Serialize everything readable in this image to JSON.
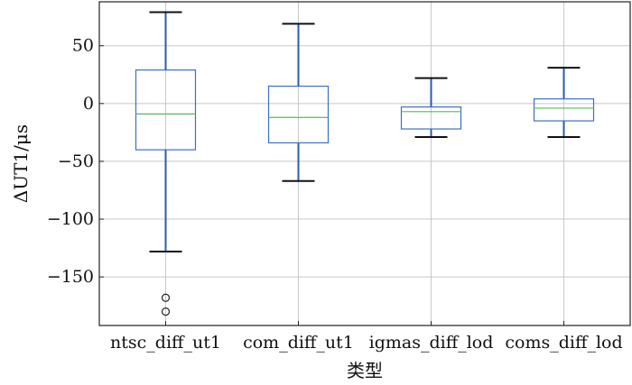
{
  "chart_data": {
    "type": "box",
    "title": "",
    "xlabel": "类型",
    "ylabel": "ΔUT1/μs",
    "ylim": [
      -192,
      88
    ],
    "yticks": [
      50,
      0,
      -50,
      -100,
      -150
    ],
    "ytick_labels": [
      "50",
      "0",
      "−50",
      "−100",
      "−150"
    ],
    "grid": true,
    "categories": [
      "ntsc_diff_ut1",
      "com_diff_ut1",
      "igmas_diff_lod",
      "coms_diff_lod"
    ],
    "boxes": [
      {
        "name": "ntsc_diff_ut1",
        "whisker_low": -128,
        "q1": -40,
        "median": -9,
        "q3": 29,
        "whisker_high": 79,
        "outliers": [
          -168,
          -180
        ]
      },
      {
        "name": "com_diff_ut1",
        "whisker_low": -67,
        "q1": -34,
        "median": -12,
        "q3": 15,
        "whisker_high": 69,
        "outliers": []
      },
      {
        "name": "igmas_diff_lod",
        "whisker_low": -29,
        "q1": -22,
        "median": -7,
        "q3": -3,
        "whisker_high": 22,
        "outliers": []
      },
      {
        "name": "coms_diff_lod",
        "whisker_low": -29,
        "q1": -15,
        "median": -4,
        "q3": 4,
        "whisker_high": 31,
        "outliers": []
      }
    ],
    "colors": {
      "box": "#3b6fc4",
      "whisker": "#2a5cb0",
      "median": "#5cb85c",
      "cap": "#111111",
      "grid": "#c8c8c8",
      "frame": "#222222"
    }
  }
}
